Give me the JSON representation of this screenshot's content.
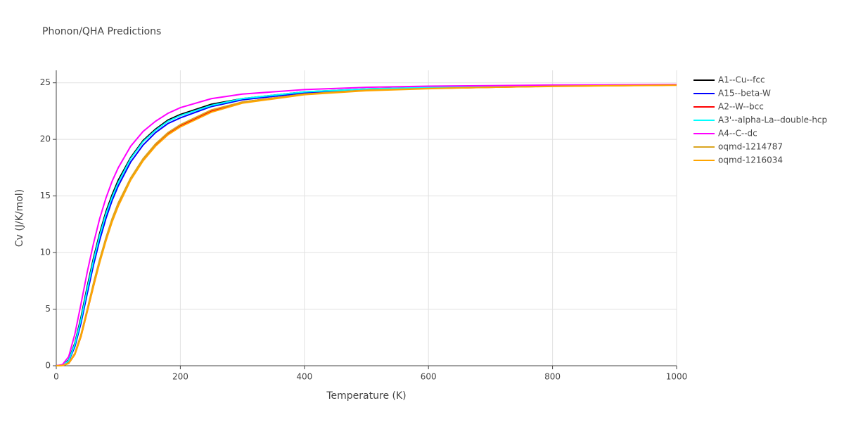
{
  "chart_data": {
    "type": "line",
    "title": "Phonon/QHA Predictions",
    "x_label": "Temperature (K)",
    "y_label": "Cv (J/K/mol)",
    "x": [
      0,
      10,
      20,
      30,
      40,
      50,
      60,
      70,
      80,
      90,
      100,
      120,
      140,
      160,
      180,
      200,
      250,
      300,
      400,
      500,
      600,
      700,
      800,
      900,
      1000
    ],
    "xlim": [
      0,
      1000
    ],
    "xticks": [
      0,
      200,
      400,
      600,
      800,
      1000
    ],
    "ylim": [
      0,
      26.1
    ],
    "yticks": [
      0,
      5,
      10,
      15,
      20,
      25
    ],
    "grid": true,
    "series": [
      {
        "name": "A1--Cu--fcc",
        "color": "#000000",
        "values": [
          0,
          0.05,
          0.5,
          2,
          4.3,
          7,
          9.5,
          11.7,
          13.6,
          15.1,
          16.4,
          18.4,
          19.9,
          20.9,
          21.7,
          22.2,
          23.1,
          23.6,
          24.2,
          24.45,
          24.6,
          24.7,
          24.75,
          24.8,
          24.82
        ]
      },
      {
        "name": "A15--beta-W",
        "color": "#0000ff",
        "values": [
          0,
          0.04,
          0.4,
          1.7,
          3.8,
          6.4,
          8.9,
          11.1,
          13,
          14.6,
          15.9,
          18,
          19.5,
          20.6,
          21.4,
          21.9,
          22.9,
          23.5,
          24.1,
          24.4,
          24.55,
          24.65,
          24.72,
          24.77,
          24.8
        ]
      },
      {
        "name": "A2--W--bcc",
        "color": "#ff0000",
        "values": [
          0,
          0.02,
          0.2,
          1,
          2.6,
          4.8,
          7,
          9.2,
          11.1,
          12.8,
          14.2,
          16.5,
          18.2,
          19.5,
          20.5,
          21.2,
          22.5,
          23.3,
          24,
          24.35,
          24.5,
          24.6,
          24.7,
          24.75,
          24.8
        ]
      },
      {
        "name": "A3'--alpha-La--double-hcp",
        "color": "#00ffff",
        "values": [
          0,
          0.05,
          0.45,
          1.9,
          4.1,
          6.8,
          9.3,
          11.5,
          13.4,
          14.9,
          16.2,
          18.3,
          19.8,
          20.8,
          21.6,
          22.1,
          23,
          23.6,
          24.2,
          24.45,
          24.6,
          24.7,
          24.75,
          24.8,
          24.82
        ]
      },
      {
        "name": "A4--C--dc",
        "color": "#ff00ff",
        "values": [
          0,
          0.1,
          0.8,
          2.8,
          5.5,
          8.3,
          10.8,
          13,
          14.8,
          16.3,
          17.5,
          19.4,
          20.7,
          21.6,
          22.3,
          22.8,
          23.6,
          24,
          24.4,
          24.6,
          24.7,
          24.75,
          24.8,
          24.82,
          24.85
        ]
      },
      {
        "name": "oqmd-1214787",
        "color": "#daa520",
        "values": [
          0,
          0.02,
          0.25,
          1.1,
          2.8,
          5,
          7.3,
          9.4,
          11.3,
          13,
          14.4,
          16.6,
          18.3,
          19.6,
          20.6,
          21.3,
          22.6,
          23.3,
          24,
          24.35,
          24.5,
          24.6,
          24.7,
          24.75,
          24.8
        ]
      },
      {
        "name": "oqmd-1216034",
        "color": "#ffa500",
        "values": [
          0,
          0.02,
          0.2,
          1,
          2.6,
          4.8,
          7,
          9.1,
          11,
          12.7,
          14.1,
          16.4,
          18.1,
          19.4,
          20.4,
          21.1,
          22.4,
          23.2,
          23.95,
          24.3,
          24.48,
          24.6,
          24.68,
          24.74,
          24.78
        ]
      }
    ]
  }
}
